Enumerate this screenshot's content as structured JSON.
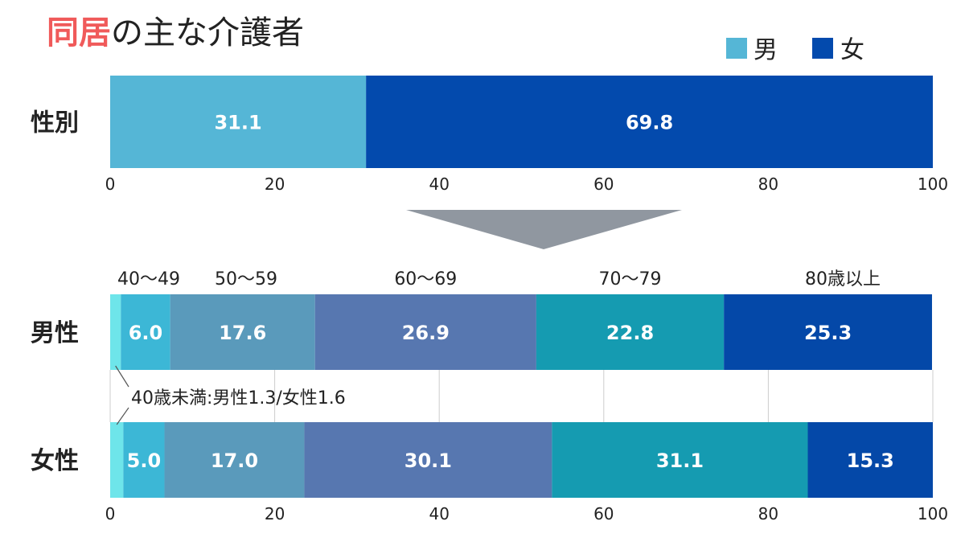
{
  "title": {
    "highlight": "同居",
    "rest": "の主な介護者"
  },
  "colors": {
    "title_highlight": "#f05a5a",
    "text": "#222222",
    "men": "#55b6d6",
    "women": "#034aad",
    "arrow": "#9097a0",
    "age_under40": "#6ee5ea",
    "age_40_49": "#3cb7d6",
    "age_50_59": "#5a9abb",
    "age_60_69": "#5777b0",
    "age_70_79": "#159bb1",
    "age_80plus": "#0448a8",
    "bar_label": "#ffffff",
    "grid": "#cccccc"
  },
  "legend": [
    {
      "label": "男",
      "color": "#55b6d6"
    },
    {
      "label": "女",
      "color": "#034aad"
    }
  ],
  "chart_data": [
    {
      "type": "bar",
      "orientation": "horizontal",
      "stacked": true,
      "categories": [
        "性別"
      ],
      "series": [
        {
          "name": "男",
          "values": [
            31.1
          ]
        },
        {
          "name": "女",
          "values": [
            69.8
          ]
        }
      ],
      "xlim": [
        0,
        100
      ],
      "xticks": [
        "0",
        "20",
        "40",
        "60",
        "80",
        "100"
      ],
      "legend_position": "top-right"
    },
    {
      "type": "bar",
      "orientation": "horizontal",
      "stacked": true,
      "categories": [
        "男性",
        "女性"
      ],
      "series": [
        {
          "name": "40歳未満",
          "values": [
            1.3,
            1.6
          ]
        },
        {
          "name": "40〜49",
          "values": [
            6.0,
            5.0
          ]
        },
        {
          "name": "50〜59",
          "values": [
            17.6,
            17.0
          ]
        },
        {
          "name": "60〜69",
          "values": [
            26.9,
            30.1
          ]
        },
        {
          "name": "70〜79",
          "values": [
            22.8,
            31.1
          ]
        },
        {
          "name": "80歳以上",
          "values": [
            25.3,
            15.3
          ]
        }
      ],
      "xlim": [
        0,
        100
      ],
      "xticks": [
        "0",
        "20",
        "40",
        "60",
        "80",
        "100"
      ],
      "annotation": "40歳未満:男性1.3/女性1.6"
    }
  ]
}
